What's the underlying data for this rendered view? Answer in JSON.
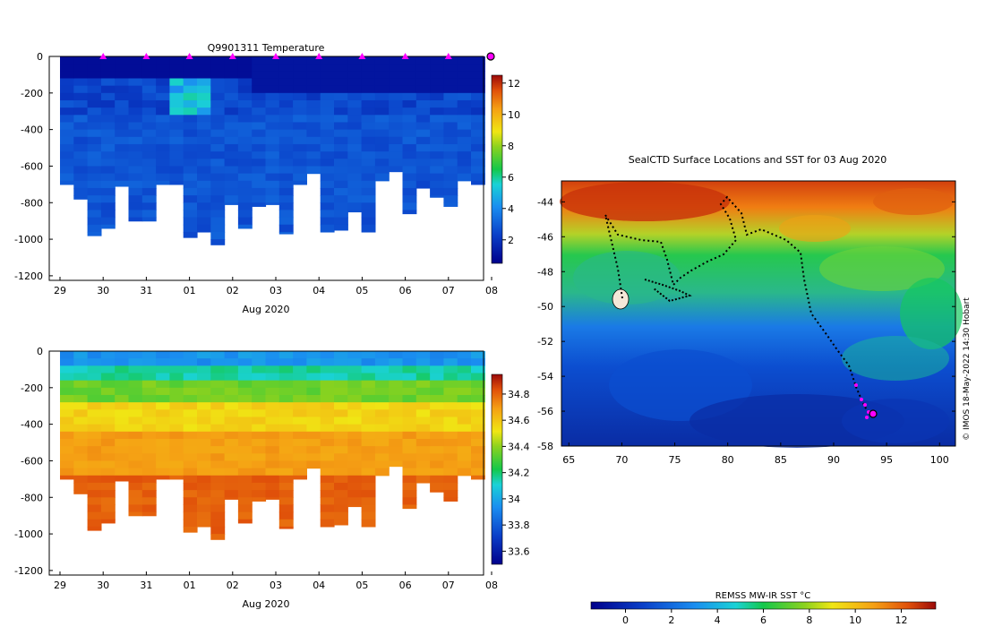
{
  "chart_data": [
    {
      "type": "heatmap",
      "title": "Q9901311  Temperature",
      "xlabel": "Aug 2020",
      "x_ticks": [
        "29",
        "30",
        "31",
        "01",
        "02",
        "03",
        "04",
        "05",
        "06",
        "07",
        "08"
      ],
      "y_ticks": [
        "0",
        "-200",
        "-400",
        "-600",
        "-800",
        "-1000",
        "-1200"
      ],
      "ylim": [
        -1225,
        0
      ],
      "colorbar": {
        "ticks": [
          "2",
          "4",
          "6",
          "8",
          "10",
          "12"
        ],
        "range": [
          0.5,
          12.5
        ]
      },
      "profile_max_depth": [
        700,
        780,
        980,
        940,
        710,
        900,
        900,
        700,
        700,
        990,
        960,
        1030,
        810,
        940,
        820,
        810,
        970,
        700,
        640,
        960,
        950,
        850,
        960,
        680,
        630,
        860,
        720,
        770,
        820,
        680,
        700
      ],
      "surface_markers": [
        "30",
        "31",
        "01",
        "02",
        "03",
        "04",
        "05",
        "06",
        "07"
      ]
    },
    {
      "type": "heatmap",
      "xlabel": "Aug 2020",
      "x_ticks": [
        "29",
        "30",
        "31",
        "01",
        "02",
        "03",
        "04",
        "05",
        "06",
        "07",
        "08"
      ],
      "y_ticks": [
        "0",
        "-200",
        "-400",
        "-600",
        "-800",
        "-1000",
        "-1200"
      ],
      "ylim": [
        -1225,
        0
      ],
      "colorbar": {
        "ticks": [
          "33.6",
          "33.8",
          "34",
          "34.2",
          "34.4",
          "34.6",
          "34.8"
        ],
        "range": [
          33.5,
          34.95
        ]
      }
    },
    {
      "type": "heatmap",
      "title": "SealCTD Surface Locations and SST for 03 Aug 2020",
      "x_ticks": [
        "65",
        "70",
        "75",
        "80",
        "85",
        "90",
        "95",
        "100"
      ],
      "y_ticks": [
        "-44",
        "-46",
        "-48",
        "-50",
        "-52",
        "-54",
        "-56",
        "-58"
      ],
      "xlim": [
        64.3,
        101.5
      ],
      "ylim": [
        -58,
        -42.8
      ],
      "colorbar": {
        "label": "REMSS MW-IR SST °C",
        "ticks": [
          "0",
          "2",
          "4",
          "6",
          "8",
          "10",
          "12"
        ],
        "range": [
          -1.5,
          13.5
        ]
      },
      "credit": "© IMOS 18-May-2022 14:30 Hobart"
    }
  ]
}
